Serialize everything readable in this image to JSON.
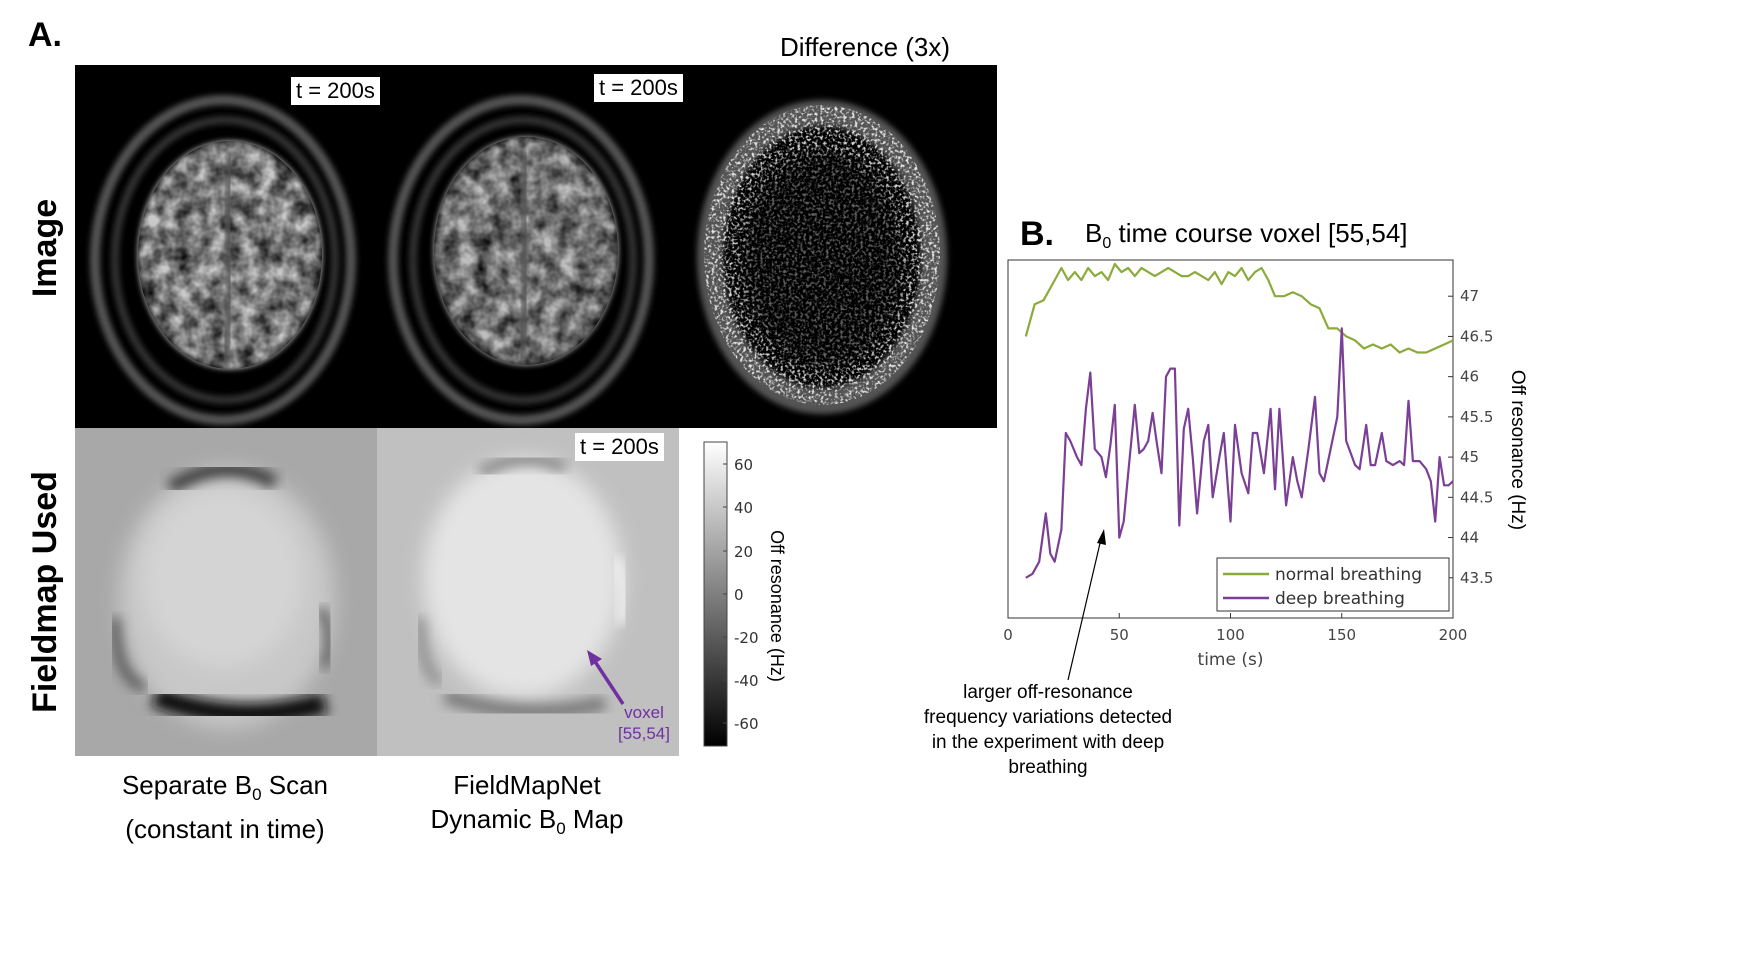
{
  "panel_a": {
    "letter": "A.",
    "difference_title": "Difference (3x)",
    "row_labels": {
      "image": "Image",
      "fieldmap": "Fieldmap Used"
    },
    "time_tags": [
      "t = 200s",
      "t = 200s",
      "t = 200s"
    ],
    "voxel_label": {
      "line1": "voxel",
      "line2": "[55,54]"
    },
    "colorbar": {
      "label": "Off resonance (Hz)",
      "ticks": [
        "60",
        "40",
        "20",
        "0",
        "-20",
        "-40",
        "-60"
      ]
    },
    "captions": {
      "separate": {
        "line1_pre": "Separate B",
        "line1_sub": "0",
        "line1_post": " Scan",
        "line2": "(constant in time)"
      },
      "fieldmapnet": {
        "line1": "FieldMapNet",
        "line2_pre": "Dynamic B",
        "line2_sub": "0",
        "line2_post": " Map"
      }
    },
    "colors": {
      "voxel": "#7030a0"
    }
  },
  "panel_b": {
    "letter": "B.",
    "note": {
      "line1": "larger off-resonance",
      "line2": "frequency variations detected",
      "line3": "in the experiment with deep",
      "line4": "breathing"
    }
  },
  "chart_data": {
    "type": "line",
    "title_pre": "B",
    "title_sub": "0",
    "title_post": " time course voxel [55,54]",
    "xlabel": "time (s)",
    "ylabel": "Off resonance (Hz)",
    "xlim": [
      0,
      200
    ],
    "ylim": [
      43,
      47.45
    ],
    "xticks": [
      "0",
      "50",
      "100",
      "150",
      "200"
    ],
    "yticks": [
      "43.5",
      "44",
      "44.5",
      "45",
      "45.5",
      "46",
      "46.5",
      "47"
    ],
    "legend_position": "bottom-right",
    "series": [
      {
        "name": "normal breathing",
        "color": "#8aab3a",
        "x": [
          8,
          12,
          16,
          20,
          24,
          27,
          30,
          33,
          36,
          39,
          42,
          45,
          48,
          51,
          54,
          57,
          60,
          63,
          66,
          69,
          72,
          75,
          78,
          81,
          84,
          87,
          90,
          93,
          96,
          99,
          102,
          105,
          108,
          111,
          114,
          117,
          120,
          124,
          128,
          132,
          136,
          140,
          144,
          148,
          152,
          156,
          160,
          164,
          168,
          172,
          176,
          180,
          184,
          188,
          192,
          196,
          200
        ],
        "values": [
          46.5,
          46.9,
          46.95,
          47.15,
          47.35,
          47.2,
          47.3,
          47.2,
          47.35,
          47.25,
          47.3,
          47.2,
          47.4,
          47.3,
          47.35,
          47.25,
          47.35,
          47.3,
          47.25,
          47.3,
          47.35,
          47.3,
          47.25,
          47.25,
          47.3,
          47.25,
          47.2,
          47.3,
          47.15,
          47.3,
          47.25,
          47.35,
          47.2,
          47.3,
          47.35,
          47.2,
          47.0,
          47.0,
          47.05,
          47.0,
          46.9,
          46.85,
          46.6,
          46.6,
          46.5,
          46.45,
          46.35,
          46.4,
          46.35,
          46.4,
          46.3,
          46.35,
          46.3,
          46.3,
          46.35,
          46.4,
          46.45
        ]
      },
      {
        "name": "deep breathing",
        "color": "#7b3f96",
        "x": [
          8,
          11,
          14,
          17,
          19,
          21,
          24,
          26,
          28,
          31,
          33,
          35,
          37,
          39,
          42,
          44,
          46,
          48,
          50,
          52,
          54,
          57,
          59,
          61,
          63,
          65,
          67,
          69,
          71,
          73,
          75,
          77,
          79,
          81,
          83,
          85,
          88,
          90,
          92,
          95,
          97,
          100,
          102,
          105,
          108,
          110,
          112,
          115,
          118,
          120,
          122,
          125,
          128,
          130,
          132,
          135,
          138,
          140,
          142,
          145,
          148,
          150,
          152,
          154,
          156,
          158,
          161,
          163,
          165,
          168,
          170,
          173,
          176,
          178,
          180,
          182,
          185,
          188,
          190,
          192,
          194,
          196,
          198,
          200
        ],
        "values": [
          43.5,
          43.55,
          43.7,
          44.3,
          43.8,
          43.7,
          44.1,
          45.3,
          45.2,
          45.0,
          44.9,
          45.6,
          46.05,
          45.1,
          45.0,
          44.75,
          45.15,
          45.65,
          44.0,
          44.2,
          44.8,
          45.65,
          45.05,
          45.1,
          45.2,
          45.55,
          45.15,
          44.8,
          46.0,
          46.1,
          46.1,
          44.15,
          45.35,
          45.6,
          45.0,
          44.3,
          45.2,
          45.4,
          44.5,
          45.0,
          45.3,
          44.2,
          45.4,
          44.8,
          44.55,
          45.3,
          45.3,
          44.8,
          45.6,
          44.6,
          45.6,
          44.4,
          45.0,
          44.7,
          44.5,
          45.1,
          45.75,
          44.8,
          44.7,
          45.1,
          45.5,
          46.6,
          45.2,
          45.05,
          44.9,
          44.85,
          45.4,
          44.9,
          44.9,
          45.3,
          44.95,
          44.9,
          44.95,
          44.9,
          45.7,
          44.95,
          44.95,
          44.85,
          44.7,
          44.2,
          45.0,
          44.65,
          44.65,
          44.7
        ]
      }
    ]
  }
}
